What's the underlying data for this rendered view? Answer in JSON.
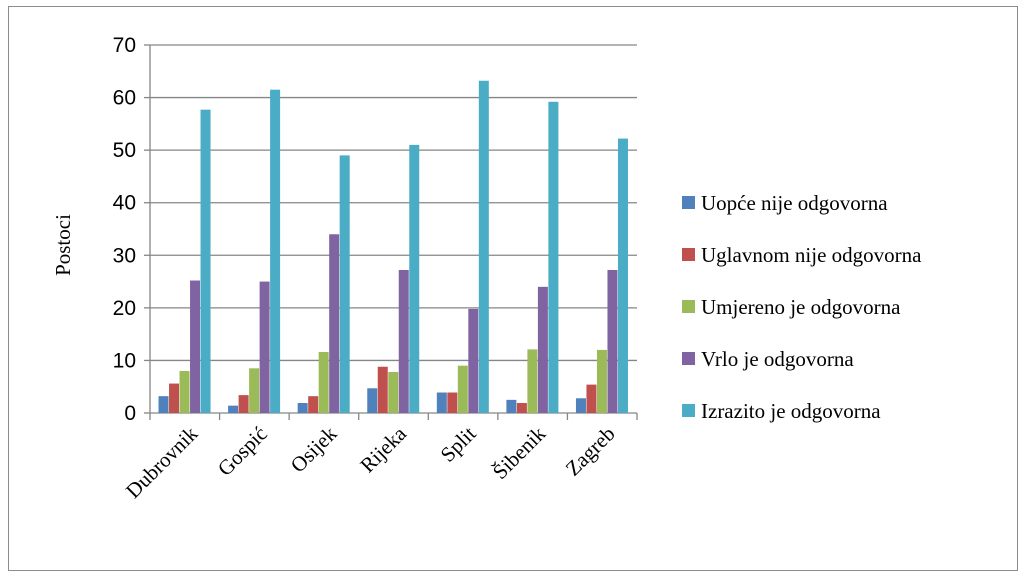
{
  "chart_data": {
    "type": "bar",
    "ylabel": "Postoci",
    "xlabel": "",
    "ylim": [
      0,
      70
    ],
    "yticks": [
      0,
      10,
      20,
      30,
      40,
      50,
      60,
      70
    ],
    "grid": true,
    "legend_position": "right",
    "categories": [
      "Dubrovnik",
      "Gospić",
      "Osijek",
      "Rijeka",
      "Split",
      "Šibenik",
      "Zagreb"
    ],
    "series": [
      {
        "name": "Uopće nije odgovorna",
        "color": "#4f81bd",
        "values": [
          3.2,
          1.4,
          1.9,
          4.7,
          3.9,
          2.5,
          2.8
        ]
      },
      {
        "name": "Uglavnom nije odgovorna",
        "color": "#c0504d",
        "values": [
          5.6,
          3.4,
          3.2,
          8.8,
          3.9,
          1.9,
          5.4
        ]
      },
      {
        "name": "Umjereno je odgovorna",
        "color": "#9bbb59",
        "values": [
          8.0,
          8.5,
          11.6,
          7.8,
          9.0,
          12.1,
          12.0
        ]
      },
      {
        "name": "Vrlo je odgovorna",
        "color": "#8064a2",
        "values": [
          25.2,
          25.0,
          34.0,
          27.2,
          19.8,
          24.0,
          27.2
        ]
      },
      {
        "name": "Izrazito je odgovorna",
        "color": "#4bacc6",
        "values": [
          57.7,
          61.5,
          49.0,
          51.0,
          63.2,
          59.2,
          52.2
        ]
      }
    ]
  }
}
